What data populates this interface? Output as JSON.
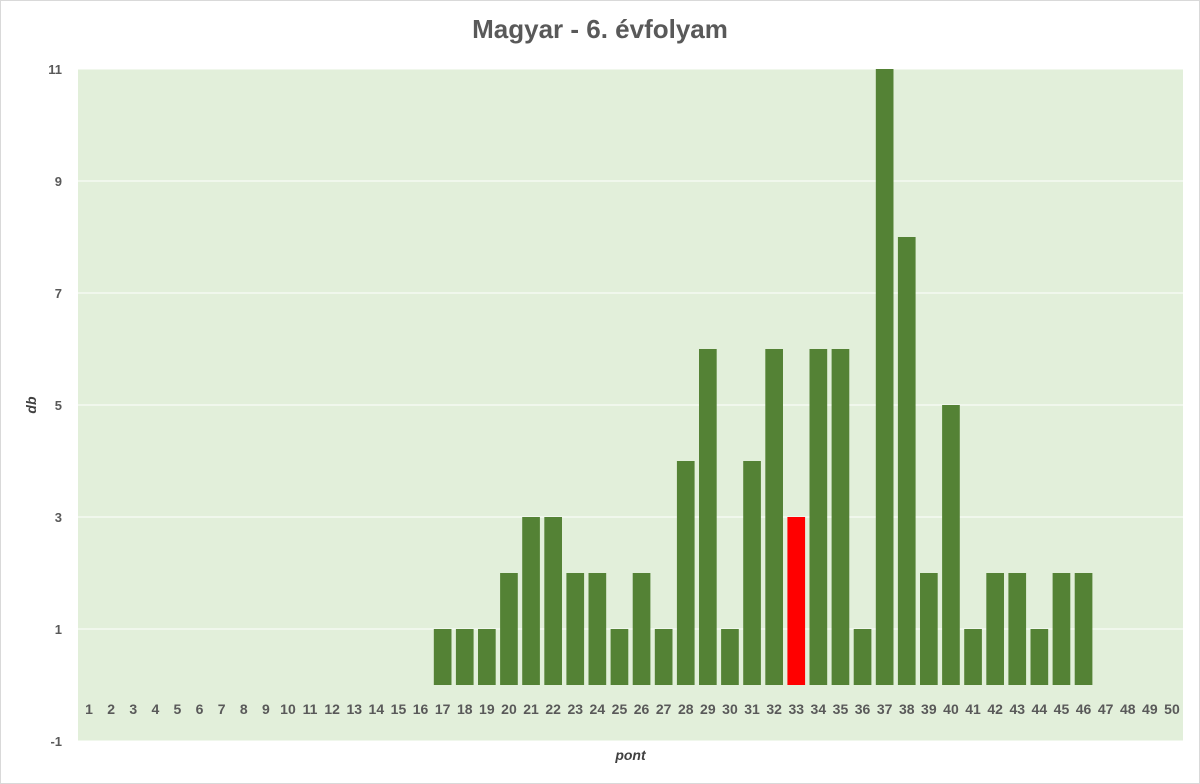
{
  "chart_data": {
    "type": "bar",
    "title": "Magyar - 6. évfolyam",
    "xlabel": "pont",
    "ylabel": "db",
    "ylim": [
      -1,
      11
    ],
    "yticks": [
      -1,
      1,
      3,
      5,
      7,
      9,
      11
    ],
    "grid": true,
    "plot_background": "#e2efda",
    "bar_color": "#548235",
    "highlight_color": "#ff0000",
    "highlight_category": "33",
    "categories": [
      "1",
      "2",
      "3",
      "4",
      "5",
      "6",
      "7",
      "8",
      "9",
      "10",
      "11",
      "12",
      "13",
      "14",
      "15",
      "16",
      "17",
      "18",
      "19",
      "20",
      "21",
      "22",
      "23",
      "24",
      "25",
      "26",
      "27",
      "28",
      "29",
      "30",
      "31",
      "32",
      "33",
      "34",
      "35",
      "36",
      "37",
      "38",
      "39",
      "40",
      "41",
      "42",
      "43",
      "44",
      "45",
      "46",
      "47",
      "48",
      "49",
      "50"
    ],
    "values": [
      0,
      0,
      0,
      0,
      0,
      0,
      0,
      0,
      0,
      0,
      0,
      0,
      0,
      0,
      0,
      0,
      1,
      1,
      1,
      2,
      3,
      3,
      2,
      2,
      1,
      2,
      1,
      4,
      6,
      1,
      4,
      6,
      3,
      6,
      6,
      1,
      11,
      8,
      2,
      5,
      1,
      2,
      2,
      1,
      2,
      2,
      0,
      0,
      0,
      0
    ]
  }
}
